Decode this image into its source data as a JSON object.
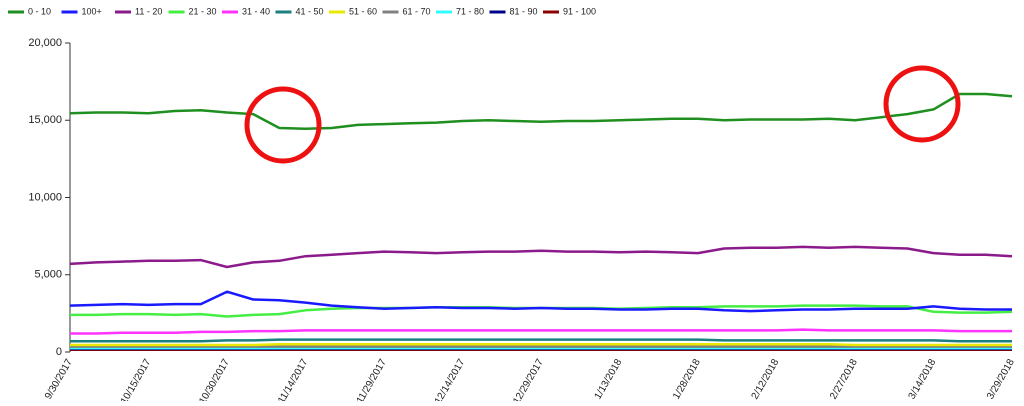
{
  "chart_data": {
    "type": "line",
    "categories": [
      "9/30/2017",
      null,
      null,
      "10/15/2017",
      null,
      null,
      "10/30/2017",
      null,
      null,
      "11/14/2017",
      null,
      null,
      "11/29/2017",
      null,
      null,
      "12/14/2017",
      null,
      null,
      "12/29/2017",
      null,
      null,
      "1/13/2018",
      null,
      null,
      "1/28/2018",
      null,
      null,
      "2/12/2018",
      null,
      null,
      "2/27/2018",
      null,
      null,
      "3/14/2018",
      null,
      null,
      "3/29/2018"
    ],
    "ylim": [
      0,
      20000
    ],
    "yticks": [
      0,
      {
        "value": 5000,
        "label": "5,000"
      },
      {
        "value": 10000,
        "label": "10,000"
      },
      {
        "value": 15000,
        "label": "15,000"
      },
      {
        "value": 20000,
        "label": "20,000"
      }
    ],
    "series": [
      {
        "name": "0 - 10",
        "color": "#1f8f1f",
        "values": [
          15450,
          15500,
          15500,
          15450,
          15600,
          15650,
          15500,
          15400,
          14500,
          14450,
          14500,
          14700,
          14750,
          14800,
          14850,
          14950,
          15000,
          14950,
          14900,
          14950,
          14950,
          15000,
          15050,
          15100,
          15100,
          15000,
          15050,
          15050,
          15050,
          15100,
          15000,
          15200,
          15400,
          15700,
          16700,
          16700,
          16550
        ]
      },
      {
        "name": "100+",
        "color": "#1a1aff",
        "values": [
          3000,
          3050,
          3100,
          3050,
          3100,
          3100,
          3900,
          3400,
          3350,
          3200,
          3000,
          2900,
          2800,
          2850,
          2900,
          2850,
          2850,
          2800,
          2850,
          2800,
          2800,
          2750,
          2750,
          2800,
          2800,
          2700,
          2650,
          2700,
          2750,
          2750,
          2800,
          2800,
          2800,
          2950,
          2800,
          2750,
          2750
        ]
      },
      {
        "name": "11 - 20",
        "color": "#8b1a8b",
        "values": [
          5700,
          5800,
          5850,
          5900,
          5900,
          5950,
          5500,
          5800,
          5900,
          6200,
          6300,
          6400,
          6500,
          6450,
          6400,
          6450,
          6500,
          6500,
          6550,
          6500,
          6500,
          6450,
          6500,
          6450,
          6400,
          6700,
          6750,
          6750,
          6800,
          6750,
          6800,
          6750,
          6700,
          6400,
          6300,
          6300,
          6200
        ]
      },
      {
        "name": "21 - 30",
        "color": "#44ee44",
        "values": [
          2400,
          2400,
          2450,
          2450,
          2400,
          2450,
          2300,
          2400,
          2450,
          2700,
          2800,
          2850,
          2850,
          2850,
          2900,
          2900,
          2900,
          2850,
          2850,
          2850,
          2850,
          2800,
          2850,
          2900,
          2900,
          2950,
          2950,
          2950,
          3000,
          3000,
          3000,
          2950,
          2950,
          2600,
          2550,
          2550,
          2600
        ]
      },
      {
        "name": "31 - 40",
        "color": "#ff33ff",
        "values": [
          1200,
          1200,
          1250,
          1250,
          1250,
          1300,
          1300,
          1350,
          1350,
          1400,
          1400,
          1400,
          1400,
          1400,
          1400,
          1400,
          1400,
          1400,
          1400,
          1400,
          1400,
          1400,
          1400,
          1400,
          1400,
          1400,
          1400,
          1400,
          1450,
          1400,
          1400,
          1400,
          1400,
          1400,
          1350,
          1350,
          1350
        ]
      },
      {
        "name": "41 - 50",
        "color": "#1a8080",
        "values": [
          700,
          700,
          700,
          700,
          700,
          700,
          750,
          750,
          800,
          800,
          800,
          800,
          800,
          800,
          800,
          800,
          800,
          800,
          800,
          800,
          800,
          800,
          800,
          800,
          800,
          750,
          750,
          750,
          750,
          750,
          750,
          750,
          750,
          750,
          700,
          700,
          700
        ]
      },
      {
        "name": "51 - 60",
        "color": "#e8e800",
        "values": [
          450,
          450,
          450,
          450,
          450,
          450,
          450,
          450,
          500,
          500,
          500,
          500,
          500,
          500,
          500,
          500,
          500,
          500,
          500,
          500,
          500,
          500,
          500,
          500,
          500,
          500,
          500,
          500,
          500,
          500,
          450,
          450,
          450,
          450,
          450,
          450,
          450
        ]
      },
      {
        "name": "61 - 70",
        "color": "#808080",
        "values": [
          350,
          350,
          350,
          350,
          350,
          350,
          350,
          350,
          350,
          350,
          350,
          350,
          350,
          350,
          350,
          350,
          350,
          350,
          350,
          350,
          350,
          350,
          350,
          350,
          350,
          350,
          350,
          350,
          350,
          350,
          350,
          350,
          350,
          350,
          350,
          350,
          350
        ]
      },
      {
        "name": "71 - 80",
        "color": "#33ffff",
        "values": [
          250,
          250,
          250,
          250,
          250,
          250,
          250,
          250,
          250,
          250,
          250,
          250,
          250,
          250,
          250,
          250,
          250,
          250,
          250,
          250,
          250,
          250,
          250,
          250,
          250,
          250,
          250,
          250,
          250,
          250,
          250,
          250,
          250,
          250,
          250,
          250,
          250
        ]
      },
      {
        "name": "81 - 90",
        "color": "#00008b",
        "values": [
          200,
          200,
          200,
          200,
          200,
          200,
          200,
          200,
          200,
          200,
          200,
          200,
          200,
          200,
          200,
          200,
          200,
          200,
          200,
          200,
          200,
          200,
          200,
          200,
          200,
          200,
          200,
          200,
          200,
          200,
          200,
          200,
          200,
          200,
          200,
          200,
          200
        ]
      },
      {
        "name": "91 - 100",
        "color": "#8b0000",
        "values": [
          150,
          150,
          150,
          150,
          150,
          150,
          150,
          150,
          150,
          150,
          150,
          150,
          150,
          150,
          150,
          150,
          150,
          150,
          150,
          150,
          150,
          150,
          150,
          150,
          150,
          150,
          150,
          150,
          150,
          150,
          150,
          150,
          150,
          150,
          150,
          150,
          150
        ]
      }
    ]
  }
}
